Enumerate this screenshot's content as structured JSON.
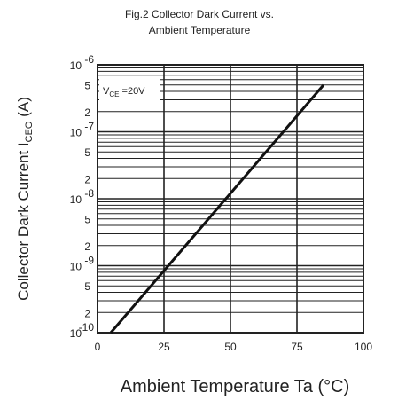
{
  "chart_data": {
    "type": "line",
    "title_line1": "Fig.2  Collector  Dark  Current  vs.",
    "title_line2": "Ambient  Temperature",
    "xlabel": "Ambient  Temperature  Ta  (°C)",
    "ylabel": "Collector  Dark  Current  I",
    "ylabel_sub": "CEO",
    "ylabel_unit": " (A)",
    "annotation_main": "V",
    "annotation_sub": "CE",
    "annotation_value": " =20V",
    "x_ticks": [
      "0",
      "25",
      "50",
      "75",
      "100"
    ],
    "x_tick_values": [
      0,
      25,
      50,
      75,
      100
    ],
    "y_scale": "log",
    "y_range": [
      1e-10,
      1e-06
    ],
    "y_decades": [
      {
        "label": "10",
        "exp": "-6",
        "value": 1e-06
      },
      {
        "label": "10",
        "exp": "-7",
        "value": 1e-07
      },
      {
        "label": "10",
        "exp": "-8",
        "value": 1e-08
      },
      {
        "label": "10",
        "exp": "-9",
        "value": 1e-09
      },
      {
        "label": "10",
        "exp": "-10",
        "value": 1e-10
      }
    ],
    "y_minor_labels": [
      {
        "label": "5",
        "value": 5e-07
      },
      {
        "label": "2",
        "value": 2e-07
      },
      {
        "label": "5",
        "value": 5e-08
      },
      {
        "label": "2",
        "value": 2e-08
      },
      {
        "label": "5",
        "value": 5e-09
      },
      {
        "label": "2",
        "value": 2e-09
      },
      {
        "label": "5",
        "value": 5e-10
      },
      {
        "label": "2",
        "value": 2e-10
      }
    ],
    "xlim": [
      0,
      100
    ],
    "grid": true,
    "series": [
      {
        "x": [
          5,
          85
        ],
        "y": [
          1e-10,
          5e-07
        ]
      }
    ]
  }
}
